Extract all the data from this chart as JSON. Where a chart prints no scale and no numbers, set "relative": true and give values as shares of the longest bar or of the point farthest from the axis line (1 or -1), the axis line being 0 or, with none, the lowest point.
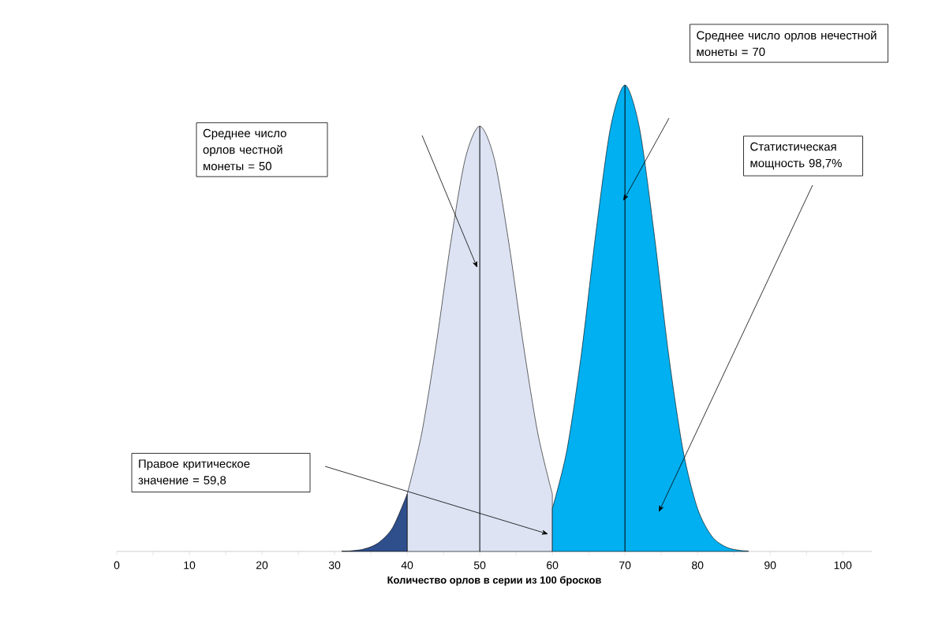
{
  "chart_data": {
    "type": "area",
    "relative": true,
    "xlabel": "Количество орлов в серии из 100 бросков",
    "xlim": [
      0,
      104
    ],
    "xticks": [
      0,
      {
        "value": 5,
        "label": null
      },
      10,
      {
        "value": 15,
        "label": null
      },
      20,
      {
        "value": 25,
        "label": null
      },
      30,
      {
        "value": 35,
        "label": null
      },
      40,
      {
        "value": 45,
        "label": null
      },
      50,
      {
        "value": 55,
        "label": null
      },
      60,
      {
        "value": 65,
        "label": null
      },
      70,
      {
        "value": 75,
        "label": null
      },
      80,
      {
        "value": 85,
        "label": null
      },
      90,
      {
        "value": 95,
        "label": null
      },
      100
    ],
    "series": [
      {
        "color": "#dde3f3",
        "x": [
          40,
          42,
          44,
          46,
          48,
          50,
          52,
          54,
          56,
          58,
          60
        ],
        "values": [
          0.123,
          0.253,
          0.444,
          0.662,
          0.842,
          0.912,
          0.842,
          0.662,
          0.444,
          0.253,
          0.123
        ]
      },
      {
        "color": "#2e4e8c",
        "x": [
          31,
          32,
          34,
          36,
          38,
          40
        ],
        "values": [
          0.001,
          0.001,
          0.005,
          0.018,
          0.051,
          0.123
        ]
      },
      {
        "color": "#00b0f0",
        "x": [
          60,
          62,
          64,
          66,
          68,
          70,
          72,
          74,
          76,
          78,
          80,
          82,
          84,
          86,
          87
        ],
        "values": [
          0.092,
          0.217,
          0.424,
          0.684,
          0.908,
          1,
          0.908,
          0.684,
          0.424,
          0.217,
          0.092,
          0.032,
          0.009,
          0.002,
          0.001
        ]
      }
    ],
    "ref_lines": [
      {
        "axis": "x",
        "value": 50,
        "color": "#000000"
      },
      {
        "axis": "x",
        "value": 70,
        "color": "#000000"
      }
    ],
    "annotations": [
      "Среднее число орлов честной монеты = 50",
      "Среднее число орлов нечестной монеты = 70",
      "Статистическая мощность 98,7%",
      "Правое критическое значение = 59,8"
    ]
  }
}
